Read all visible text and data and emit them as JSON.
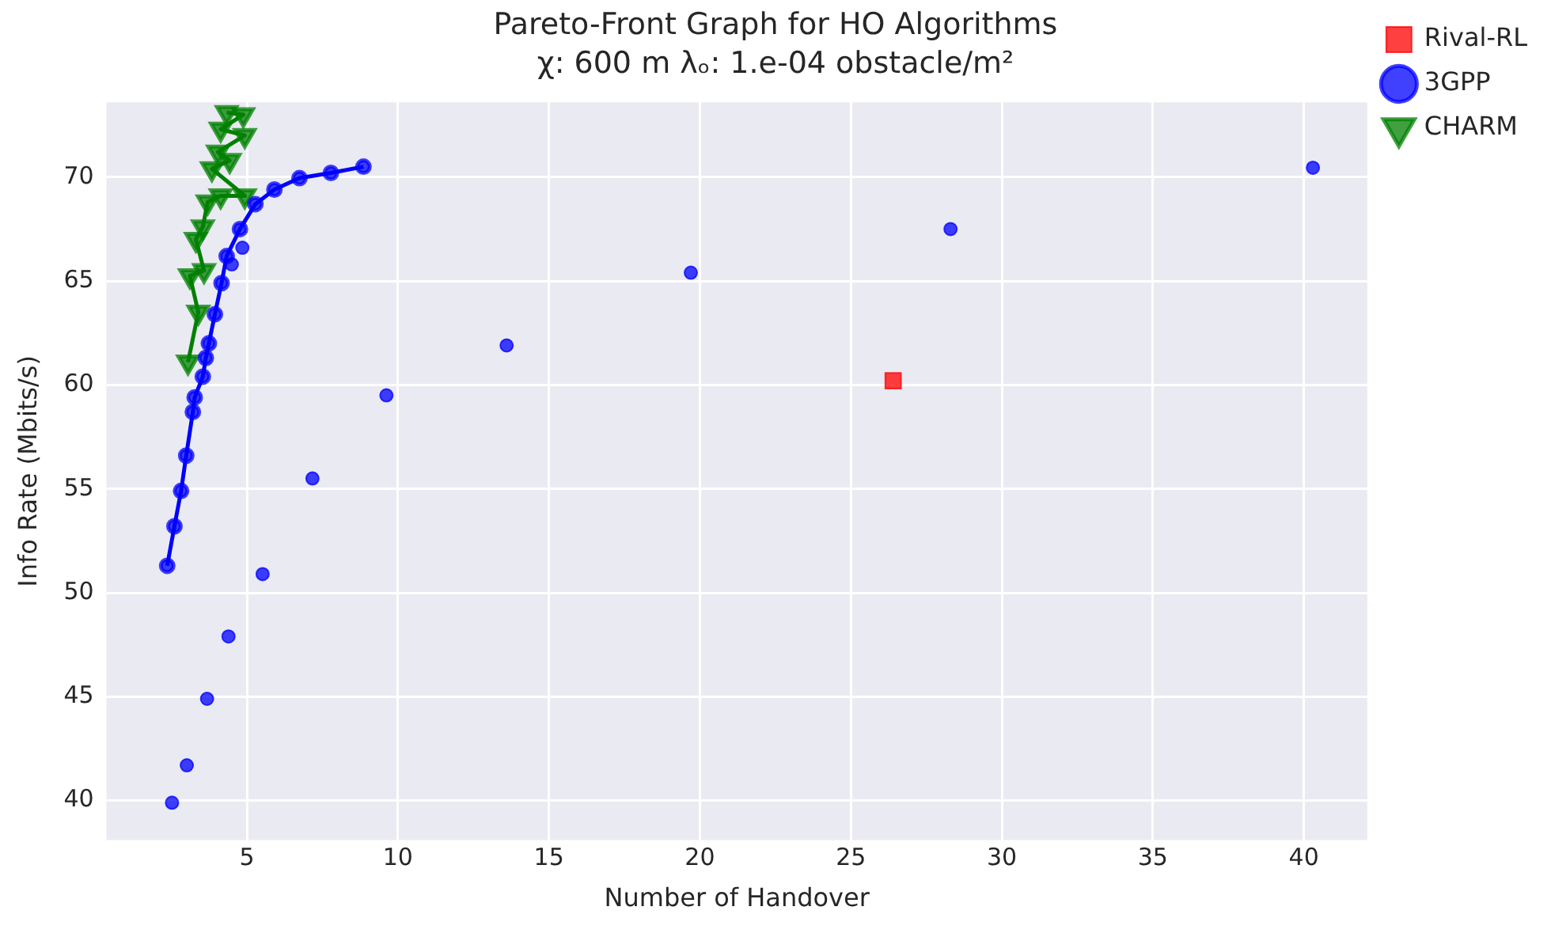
{
  "chart_data": {
    "type": "line",
    "title": "Pareto-Front Graph for HO Algorithms",
    "subtitle": "χ: 600 m λₒ: 1.e-04 obstacle/m²",
    "xlabel": "Number of Handover",
    "ylabel": "Info Rate (Mbits/s)",
    "xlim": [
      0.35,
      42.1
    ],
    "ylim": [
      38.1,
      73.6
    ],
    "xticks": [
      5,
      10,
      15,
      20,
      25,
      30,
      35,
      40
    ],
    "yticks": [
      40,
      45,
      50,
      55,
      60,
      65,
      70
    ],
    "grid": true,
    "legend": "top right",
    "series": [
      {
        "name": "3GPP",
        "marker": "circle",
        "color": "#0000ff",
        "x": [
          2.36,
          2.6,
          2.82,
          2.99,
          3.21,
          3.27,
          3.54,
          3.64,
          3.74,
          3.94,
          4.16,
          4.33,
          4.77,
          5.28,
          5.91,
          6.74,
          7.78,
          8.86
        ],
        "values": [
          51.3,
          53.2,
          54.9,
          56.6,
          58.7,
          59.4,
          60.4,
          61.3,
          62.0,
          63.4,
          64.9,
          66.2,
          67.5,
          68.7,
          69.4,
          69.95,
          70.2,
          70.5
        ]
      },
      {
        "name": "CHARM",
        "marker": "triangle",
        "color": "#008000",
        "x": [
          3.05,
          3.39,
          3.11,
          3.58,
          3.31,
          3.54,
          3.7,
          4.13,
          4.93,
          3.84,
          4.43,
          4.04,
          4.93,
          4.13,
          4.88,
          4.33
        ],
        "values": [
          61.1,
          63.5,
          65.25,
          65.5,
          67.0,
          67.6,
          68.8,
          69.1,
          69.1,
          70.4,
          70.8,
          71.2,
          72.0,
          72.3,
          73.0,
          73.1
        ]
      },
      {
        "name": "Rival-RL",
        "type": "scatter",
        "marker": "square",
        "color": "#ff0000",
        "x": [
          26.4
        ],
        "values": [
          60.2
        ]
      },
      {
        "type": "scatter",
        "marker": "circle",
        "color": "#0000ff",
        "x": [
          2.52,
          3.01,
          3.68,
          4.39,
          5.52,
          7.17,
          9.62,
          13.6,
          19.7,
          28.3,
          40.3,
          4.5,
          4.85
        ],
        "values": [
          39.9,
          41.7,
          44.9,
          47.9,
          50.9,
          55.5,
          59.5,
          61.9,
          65.4,
          67.5,
          70.45,
          65.8,
          66.6
        ]
      }
    ]
  }
}
